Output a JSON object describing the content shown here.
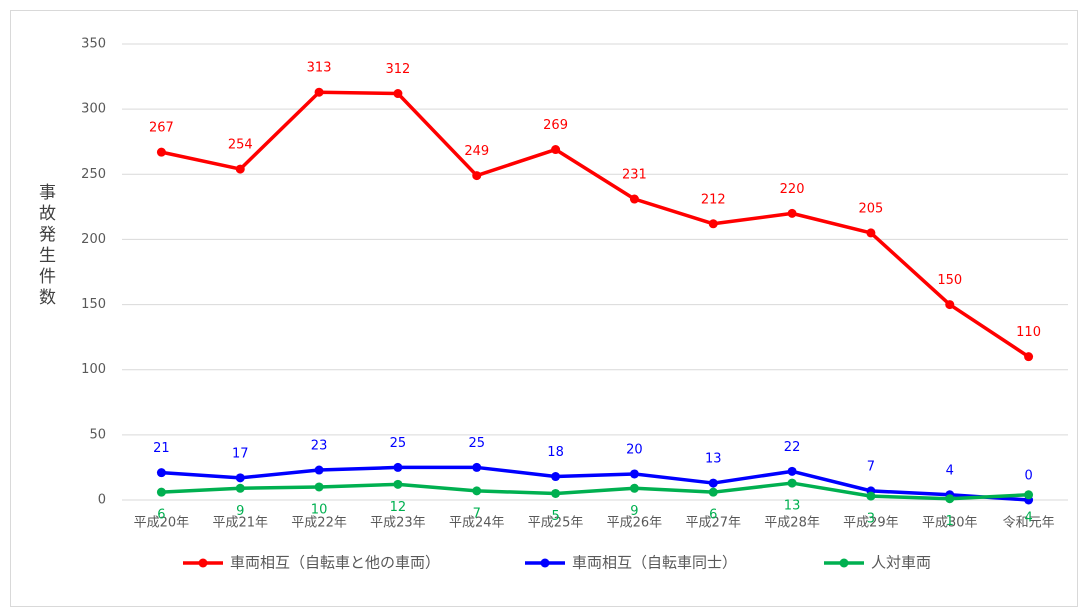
{
  "chart_data": {
    "type": "line",
    "ylabel": "事故発生件数",
    "categories": [
      "平成20年",
      "平成21年",
      "平成22年",
      "平成23年",
      "平成24年",
      "平成25年",
      "平成26年",
      "平成27年",
      "平成28年",
      "平成29年",
      "平成30年",
      "令和元年"
    ],
    "series": [
      {
        "name": "車両相互（自転車と他の車両）",
        "color": "#ff0000",
        "values": [
          267,
          254,
          313,
          312,
          249,
          269,
          231,
          212,
          220,
          205,
          150,
          110
        ]
      },
      {
        "name": "車両相互（自転車同士）",
        "color": "#0000ff",
        "values": [
          21,
          17,
          23,
          25,
          25,
          18,
          20,
          13,
          22,
          7,
          4,
          0
        ]
      },
      {
        "name": "人対車両",
        "color": "#00b050",
        "values": [
          6,
          9,
          10,
          12,
          7,
          5,
          9,
          6,
          13,
          3,
          1,
          4
        ]
      }
    ],
    "ylim": [
      0,
      350
    ],
    "yticks": [
      0,
      50,
      100,
      150,
      200,
      250,
      300,
      350
    ],
    "grid": true,
    "legend": "bottom"
  }
}
